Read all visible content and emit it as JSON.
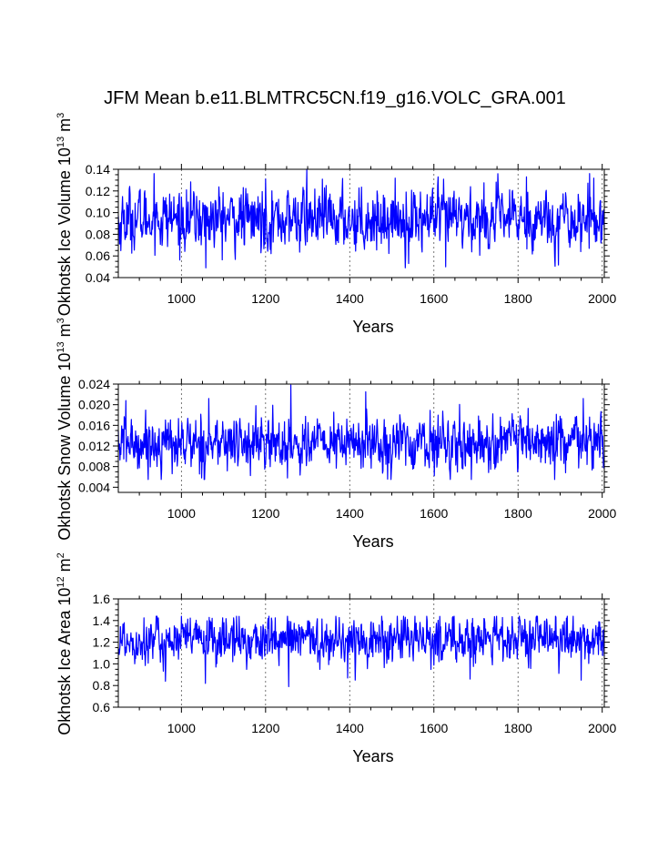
{
  "figure_title": "JFM Mean b.e11.BLMTRC5CN.f19_g16.VOLC_GRA.001",
  "chart_data": [
    {
      "type": "line",
      "title": "JFM Mean b.e11.BLMTRC5CN.f19_g16.VOLC_GRA.001",
      "ylabel_main": "Okhotsk Ice Volume 10",
      "ylabel_exp": "13",
      "ylabel_unit": " m",
      "ylabel_unit_exp": "3",
      "xlabel": "Years",
      "xlim": [
        850,
        2005
      ],
      "ylim": [
        0.04,
        0.14
      ],
      "yticks": [
        0.04,
        0.06,
        0.08,
        0.1,
        0.12,
        0.14
      ],
      "ytick_labels": [
        "0.04",
        "0.06",
        "0.08",
        "0.10",
        "0.12",
        "0.14"
      ],
      "xticks": [
        1000,
        1200,
        1400,
        1600,
        1800,
        2000
      ],
      "xtick_labels": [
        "1000",
        "1200",
        "1400",
        "1600",
        "1800",
        "2000"
      ],
      "grid": "dashed vertical at x ticks",
      "series": [
        {
          "name": "Okhotsk Ice Volume",
          "color": "#0000ff",
          "x_start": 850,
          "x_end": 2005,
          "x_step": 1,
          "mean": 0.094,
          "spread": 0.014,
          "min": 0.049,
          "max": 0.14,
          "anchors": [
            {
              "year": 853,
              "value": 0.071
            },
            {
              "year": 935,
              "value": 0.136
            },
            {
              "year": 1058,
              "value": 0.049
            },
            {
              "year": 1200,
              "value": 0.131
            },
            {
              "year": 1298,
              "value": 0.14
            },
            {
              "year": 1540,
              "value": 0.053
            },
            {
              "year": 1628,
              "value": 0.05
            },
            {
              "year": 1820,
              "value": 0.133
            },
            {
              "year": 1970,
              "value": 0.136
            }
          ]
        }
      ]
    },
    {
      "type": "line",
      "ylabel_main": "Okhotsk Snow Volume 10",
      "ylabel_exp": "13",
      "ylabel_unit": " m",
      "ylabel_unit_exp": "3",
      "xlabel": "Years",
      "xlim": [
        850,
        2005
      ],
      "ylim": [
        0.003,
        0.024
      ],
      "yticks": [
        0.004,
        0.008,
        0.012,
        0.016,
        0.02,
        0.024
      ],
      "ytick_labels": [
        "0.004",
        "0.008",
        "0.012",
        "0.016",
        "0.020",
        "0.024"
      ],
      "xticks": [
        1000,
        1200,
        1400,
        1600,
        1800,
        2000
      ],
      "xtick_labels": [
        "1000",
        "1200",
        "1400",
        "1600",
        "1800",
        "2000"
      ],
      "grid": "dashed vertical at x ticks",
      "series": [
        {
          "name": "Okhotsk Snow Volume",
          "color": "#0000ff",
          "x_start": 850,
          "x_end": 2005,
          "x_step": 1,
          "mean": 0.0125,
          "spread": 0.0026,
          "min": 0.0055,
          "max": 0.0238,
          "anchors": [
            {
              "year": 868,
              "value": 0.0208
            },
            {
              "year": 1065,
              "value": 0.0212
            },
            {
              "year": 1260,
              "value": 0.0238
            },
            {
              "year": 1252,
              "value": 0.0058
            },
            {
              "year": 1438,
              "value": 0.0225
            },
            {
              "year": 1955,
              "value": 0.0212
            }
          ]
        }
      ]
    },
    {
      "type": "line",
      "ylabel_main": "Okhotsk Ice Area 10",
      "ylabel_exp": "12",
      "ylabel_unit": " m",
      "ylabel_unit_exp": "2",
      "xlabel": "Years",
      "xlim": [
        850,
        2005
      ],
      "ylim": [
        0.6,
        1.6
      ],
      "yticks": [
        0.6,
        0.8,
        1.0,
        1.2,
        1.4,
        1.6
      ],
      "ytick_labels": [
        "0.6",
        "0.8",
        "1.0",
        "1.2",
        "1.4",
        "1.6"
      ],
      "xticks": [
        1000,
        1200,
        1400,
        1600,
        1800,
        2000
      ],
      "xtick_labels": [
        "1000",
        "1200",
        "1400",
        "1600",
        "1800",
        "2000"
      ],
      "grid": "dashed vertical at x ticks",
      "series": [
        {
          "name": "Okhotsk Ice Area",
          "color": "#0000ff",
          "x_start": 850,
          "x_end": 2005,
          "x_step": 1,
          "mean": 1.22,
          "spread": 0.11,
          "min": 0.79,
          "max": 1.44,
          "anchors": [
            {
              "year": 962,
              "value": 0.84
            },
            {
              "year": 1057,
              "value": 0.82
            },
            {
              "year": 1255,
              "value": 0.79
            },
            {
              "year": 1395,
              "value": 0.87
            },
            {
              "year": 1686,
              "value": 0.86
            },
            {
              "year": 1749,
              "value": 1.44
            },
            {
              "year": 1950,
              "value": 0.85
            }
          ]
        }
      ]
    }
  ]
}
